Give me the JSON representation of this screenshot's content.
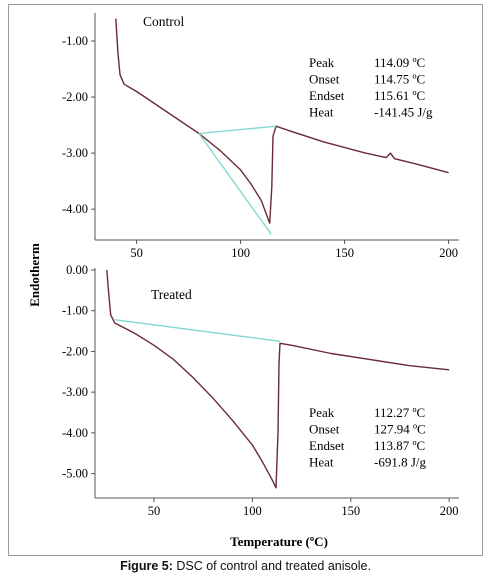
{
  "caption": {
    "label": "Figure 5:",
    "text": "DSC of control and treated anisole."
  },
  "colors": {
    "curve": "#6b2a3a",
    "baseline": "#7fd6d0",
    "axis": "#555555"
  },
  "chart_data": [
    {
      "type": "line",
      "title": "Control",
      "xlabel": "",
      "ylabel": "Endotherm",
      "xlim": [
        30,
        205
      ],
      "ylim": [
        -4.55,
        -0.5
      ],
      "xticks": [
        "50",
        "100",
        "150",
        "200"
      ],
      "yticks": [
        "-1.00",
        "-2.00",
        "-3.00",
        "-4.00"
      ],
      "annotations": [
        {
          "label": "Peak",
          "value": "114.09 ºC"
        },
        {
          "label": "Onset",
          "value": "114.75 ºC"
        },
        {
          "label": "Endset",
          "value": "115.61 ºC"
        },
        {
          "label": "Heat",
          "value": "-141.45 J/g"
        }
      ],
      "series": [
        {
          "values": [
            {
              "x": 40,
              "y": -0.6
            },
            {
              "x": 41,
              "y": -1.2
            },
            {
              "x": 42,
              "y": -1.6
            },
            {
              "x": 44,
              "y": -1.77
            },
            {
              "x": 50,
              "y": -1.9
            },
            {
              "x": 60,
              "y": -2.15
            },
            {
              "x": 70,
              "y": -2.4
            },
            {
              "x": 80,
              "y": -2.65
            },
            {
              "x": 90,
              "y": -2.95
            },
            {
              "x": 100,
              "y": -3.3
            },
            {
              "x": 105,
              "y": -3.55
            },
            {
              "x": 110,
              "y": -3.85
            },
            {
              "x": 113,
              "y": -4.15
            },
            {
              "x": 114,
              "y": -4.25
            },
            {
              "x": 115,
              "y": -3.6
            },
            {
              "x": 115.6,
              "y": -2.7
            },
            {
              "x": 117,
              "y": -2.52
            },
            {
              "x": 125,
              "y": -2.62
            },
            {
              "x": 140,
              "y": -2.8
            },
            {
              "x": 160,
              "y": -3.0
            },
            {
              "x": 170,
              "y": -3.08
            },
            {
              "x": 172,
              "y": -3.0
            },
            {
              "x": 174,
              "y": -3.1
            },
            {
              "x": 185,
              "y": -3.2
            },
            {
              "x": 200,
              "y": -3.35
            }
          ]
        },
        {
          "name": "",
          "values": [
            {
              "x": 80,
              "y": -2.65
            },
            {
              "x": 117,
              "y": -2.52
            }
          ]
        },
        {
          "name": "",
          "values": [
            {
              "x": 80,
              "y": -2.65
            },
            {
              "x": 114.75,
              "y": -4.45
            }
          ]
        }
      ]
    },
    {
      "type": "line",
      "title": "Treated",
      "xlabel": "Temperature (ºC)",
      "ylabel": "",
      "xlim": [
        20,
        205
      ],
      "ylim": [
        -5.6,
        0.05
      ],
      "xticks": [
        "50",
        "100",
        "150",
        "200"
      ],
      "yticks": [
        "0.00",
        "-1.00",
        "-2.00",
        "-3.00",
        "-4.00",
        "-5.00"
      ],
      "annotations": [
        {
          "label": "Peak",
          "value": "112.27 ºC"
        },
        {
          "label": "Onset",
          "value": "127.94 ºC"
        },
        {
          "label": "Endset",
          "value": "113.87 ºC"
        },
        {
          "label": "Heat",
          "value": "-691.8 J/g"
        }
      ],
      "series": [
        {
          "values": [
            {
              "x": 26,
              "y": 0.0
            },
            {
              "x": 27,
              "y": -0.6
            },
            {
              "x": 28,
              "y": -1.1
            },
            {
              "x": 30,
              "y": -1.3
            },
            {
              "x": 40,
              "y": -1.55
            },
            {
              "x": 50,
              "y": -1.85
            },
            {
              "x": 60,
              "y": -2.2
            },
            {
              "x": 70,
              "y": -2.65
            },
            {
              "x": 80,
              "y": -3.15
            },
            {
              "x": 90,
              "y": -3.7
            },
            {
              "x": 100,
              "y": -4.3
            },
            {
              "x": 105,
              "y": -4.7
            },
            {
              "x": 110,
              "y": -5.15
            },
            {
              "x": 112,
              "y": -5.35
            },
            {
              "x": 113,
              "y": -4.0
            },
            {
              "x": 113.5,
              "y": -2.3
            },
            {
              "x": 114,
              "y": -1.8
            },
            {
              "x": 120,
              "y": -1.85
            },
            {
              "x": 140,
              "y": -2.05
            },
            {
              "x": 160,
              "y": -2.2
            },
            {
              "x": 180,
              "y": -2.35
            },
            {
              "x": 200,
              "y": -2.45
            }
          ]
        },
        {
          "name": "",
          "values": [
            {
              "x": 30,
              "y": -1.22
            },
            {
              "x": 114,
              "y": -1.75
            }
          ]
        }
      ]
    }
  ]
}
